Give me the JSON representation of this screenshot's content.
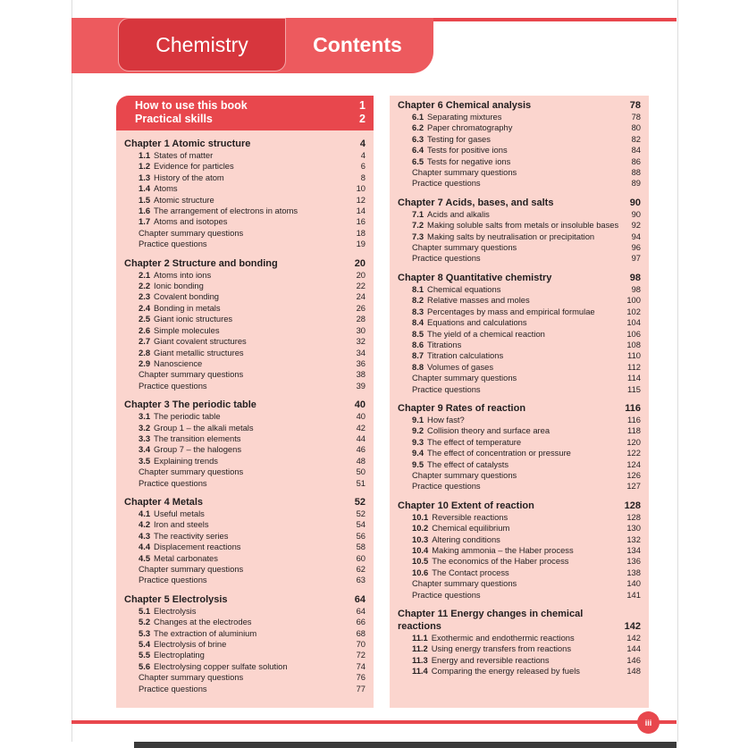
{
  "header": {
    "subject": "Chemistry",
    "title": "Contents"
  },
  "intro": [
    {
      "title": "How to use this book",
      "page": 1
    },
    {
      "title": "Practical skills",
      "page": 2
    }
  ],
  "columns": [
    [
      {
        "title": "Chapter 1 Atomic structure",
        "page": 4,
        "items": [
          {
            "num": "1.1",
            "title": "States of matter",
            "page": 4
          },
          {
            "num": "1.2",
            "title": "Evidence for particles",
            "page": 6
          },
          {
            "num": "1.3",
            "title": "History of the atom",
            "page": 8
          },
          {
            "num": "1.4",
            "title": "Atoms",
            "page": 10
          },
          {
            "num": "1.5",
            "title": "Atomic structure",
            "page": 12
          },
          {
            "num": "1.6",
            "title": "The arrangement of electrons in atoms",
            "page": 14
          },
          {
            "num": "1.7",
            "title": "Atoms and isotopes",
            "page": 16
          },
          {
            "title": "Chapter summary questions",
            "page": 18
          },
          {
            "title": "Practice questions",
            "page": 19
          }
        ]
      },
      {
        "title": "Chapter 2 Structure and bonding",
        "page": 20,
        "items": [
          {
            "num": "2.1",
            "title": "Atoms into ions",
            "page": 20
          },
          {
            "num": "2.2",
            "title": "Ionic bonding",
            "page": 22
          },
          {
            "num": "2.3",
            "title": "Covalent bonding",
            "page": 24
          },
          {
            "num": "2.4",
            "title": "Bonding in metals",
            "page": 26
          },
          {
            "num": "2.5",
            "title": "Giant ionic structures",
            "page": 28
          },
          {
            "num": "2.6",
            "title": "Simple molecules",
            "page": 30
          },
          {
            "num": "2.7",
            "title": "Giant covalent structures",
            "page": 32
          },
          {
            "num": "2.8",
            "title": "Giant metallic structures",
            "page": 34
          },
          {
            "num": "2.9",
            "title": "Nanoscience",
            "page": 36
          },
          {
            "title": "Chapter summary questions",
            "page": 38
          },
          {
            "title": "Practice questions",
            "page": 39
          }
        ]
      },
      {
        "title": "Chapter 3 The periodic table",
        "page": 40,
        "items": [
          {
            "num": "3.1",
            "title": "The periodic table",
            "page": 40
          },
          {
            "num": "3.2",
            "title": "Group 1 – the alkali metals",
            "page": 42
          },
          {
            "num": "3.3",
            "title": "The transition elements",
            "page": 44
          },
          {
            "num": "3.4",
            "title": "Group 7 – the halogens",
            "page": 46
          },
          {
            "num": "3.5",
            "title": "Explaining trends",
            "page": 48
          },
          {
            "title": "Chapter summary questions",
            "page": 50
          },
          {
            "title": "Practice questions",
            "page": 51
          }
        ]
      },
      {
        "title": "Chapter 4 Metals",
        "page": 52,
        "items": [
          {
            "num": "4.1",
            "title": "Useful metals",
            "page": 52
          },
          {
            "num": "4.2",
            "title": "Iron and steels",
            "page": 54
          },
          {
            "num": "4.3",
            "title": "The reactivity series",
            "page": 56
          },
          {
            "num": "4.4",
            "title": "Displacement reactions",
            "page": 58
          },
          {
            "num": "4.5",
            "title": "Metal carbonates",
            "page": 60
          },
          {
            "title": "Chapter summary questions",
            "page": 62
          },
          {
            "title": "Practice questions",
            "page": 63
          }
        ]
      },
      {
        "title": "Chapter 5 Electrolysis",
        "page": 64,
        "items": [
          {
            "num": "5.1",
            "title": "Electrolysis",
            "page": 64
          },
          {
            "num": "5.2",
            "title": "Changes at the electrodes",
            "page": 66
          },
          {
            "num": "5.3",
            "title": "The extraction of aluminium",
            "page": 68
          },
          {
            "num": "5.4",
            "title": "Electrolysis of brine",
            "page": 70
          },
          {
            "num": "5.5",
            "title": "Electroplating",
            "page": 72
          },
          {
            "num": "5.6",
            "title": "Electrolysing copper sulfate solution",
            "page": 74
          },
          {
            "title": "Chapter summary questions",
            "page": 76
          },
          {
            "title": "Practice questions",
            "page": 77
          }
        ]
      }
    ],
    [
      {
        "title": "Chapter 6 Chemical analysis",
        "page": 78,
        "items": [
          {
            "num": "6.1",
            "title": "Separating mixtures",
            "page": 78
          },
          {
            "num": "6.2",
            "title": "Paper chromatography",
            "page": 80
          },
          {
            "num": "6.3",
            "title": "Testing for gases",
            "page": 82
          },
          {
            "num": "6.4",
            "title": "Tests for positive ions",
            "page": 84
          },
          {
            "num": "6.5",
            "title": "Tests for negative ions",
            "page": 86
          },
          {
            "title": "Chapter summary questions",
            "page": 88
          },
          {
            "title": "Practice questions",
            "page": 89
          }
        ]
      },
      {
        "title": "Chapter 7 Acids, bases, and salts",
        "page": 90,
        "items": [
          {
            "num": "7.1",
            "title": "Acids and alkalis",
            "page": 90
          },
          {
            "num": "7.2",
            "title": "Making soluble salts from metals or insoluble bases",
            "page": 92
          },
          {
            "num": "7.3",
            "title": "Making salts by neutralisation or precipitation",
            "page": 94
          },
          {
            "title": "Chapter summary questions",
            "page": 96
          },
          {
            "title": "Practice questions",
            "page": 97
          }
        ]
      },
      {
        "title": "Chapter 8 Quantitative chemistry",
        "page": 98,
        "items": [
          {
            "num": "8.1",
            "title": "Chemical equations",
            "page": 98
          },
          {
            "num": "8.2",
            "title": "Relative masses and moles",
            "page": 100
          },
          {
            "num": "8.3",
            "title": "Percentages by mass and empirical formulae",
            "page": 102
          },
          {
            "num": "8.4",
            "title": "Equations and calculations",
            "page": 104
          },
          {
            "num": "8.5",
            "title": "The yield of a chemical reaction",
            "page": 106
          },
          {
            "num": "8.6",
            "title": "Titrations",
            "page": 108
          },
          {
            "num": "8.7",
            "title": "Titration calculations",
            "page": 110
          },
          {
            "num": "8.8",
            "title": "Volumes of gases",
            "page": 112
          },
          {
            "title": "Chapter summary questions",
            "page": 114
          },
          {
            "title": "Practice questions",
            "page": 115
          }
        ]
      },
      {
        "title": "Chapter 9 Rates of reaction",
        "page": 116,
        "items": [
          {
            "num": "9.1",
            "title": "How fast?",
            "page": 116
          },
          {
            "num": "9.2",
            "title": "Collision theory and surface area",
            "page": 118
          },
          {
            "num": "9.3",
            "title": "The effect of temperature",
            "page": 120
          },
          {
            "num": "9.4",
            "title": "The effect of concentration or pressure",
            "page": 122
          },
          {
            "num": "9.5",
            "title": "The effect of catalysts",
            "page": 124
          },
          {
            "title": "Chapter summary questions",
            "page": 126
          },
          {
            "title": "Practice questions",
            "page": 127
          }
        ]
      },
      {
        "title": "Chapter 10 Extent of reaction",
        "page": 128,
        "items": [
          {
            "num": "10.1",
            "title": "Reversible reactions",
            "page": 128
          },
          {
            "num": "10.2",
            "title": "Chemical equilibrium",
            "page": 130
          },
          {
            "num": "10.3",
            "title": "Altering conditions",
            "page": 132
          },
          {
            "num": "10.4",
            "title": "Making ammonia – the Haber process",
            "page": 134
          },
          {
            "num": "10.5",
            "title": "The economics of the Haber process",
            "page": 136
          },
          {
            "num": "10.6",
            "title": "The Contact process",
            "page": 138
          },
          {
            "title": "Chapter summary questions",
            "page": 140
          },
          {
            "title": "Practice questions",
            "page": 141
          }
        ]
      },
      {
        "title": "Chapter 11 Energy changes in chemical reactions",
        "page": 142,
        "items": [
          {
            "num": "11.1",
            "title": "Exothermic and endothermic reactions",
            "page": 142
          },
          {
            "num": "11.2",
            "title": "Using energy transfers from reactions",
            "page": 144
          },
          {
            "num": "11.3",
            "title": "Energy and reversible reactions",
            "page": 146
          },
          {
            "num": "11.4",
            "title": "Comparing the energy released by fuels",
            "page": 148
          }
        ]
      }
    ]
  ],
  "page_number": "iii"
}
